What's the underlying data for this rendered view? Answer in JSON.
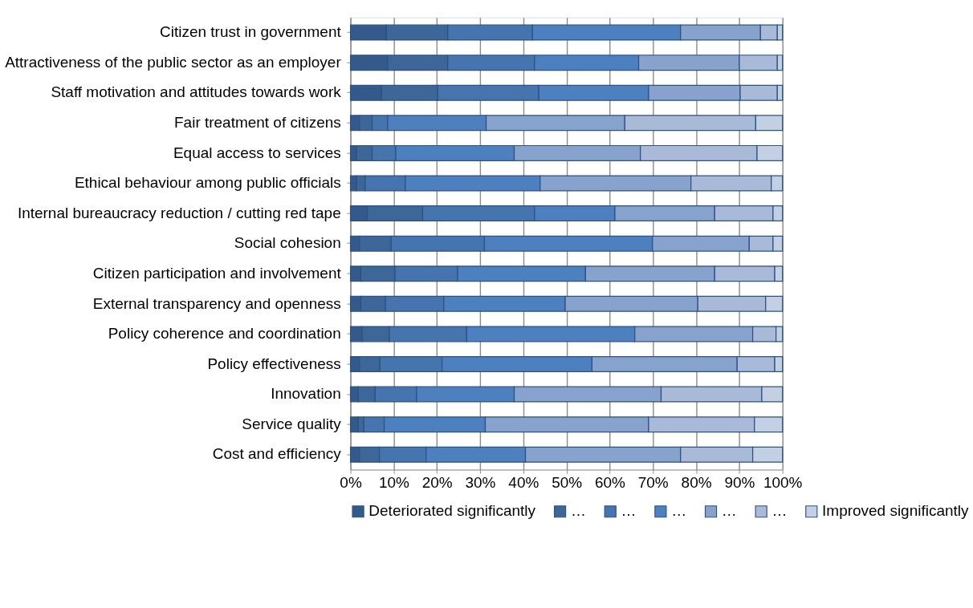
{
  "chart_data": {
    "type": "bar",
    "orientation": "horizontal",
    "stacked": true,
    "categories": [
      "Citizen trust in government",
      "Attractiveness of the public sector as an employer",
      "Staff motivation and attitudes towards work",
      "Fair treatment of citizens",
      "Equal access to services",
      "Ethical behaviour among public officials",
      "Internal bureaucracy reduction / cutting red tape",
      "Social cohesion",
      "Citizen participation and involvement",
      "External transparency and openness",
      "Policy coherence and coordination",
      "Policy effectiveness",
      "Innovation",
      "Service quality",
      "Cost and efficiency"
    ],
    "series": [
      {
        "name": "Deteriorated significantly",
        "color": "#335a8a",
        "values": [
          8.3,
          8.6,
          7.2,
          2.1,
          1.4,
          1.4,
          3.9,
          2.1,
          2.4,
          2.4,
          2.7,
          2.1,
          1.8,
          1.8,
          2.1
        ]
      },
      {
        "name": "…",
        "color": "#3d6799",
        "values": [
          14.2,
          13.9,
          13.0,
          2.9,
          3.6,
          2.0,
          12.8,
          7.3,
          7.9,
          5.7,
          6.3,
          4.7,
          3.9,
          1.3,
          4.6
        ]
      },
      {
        "name": "…",
        "color": "#4674ae",
        "values": [
          19.6,
          20.1,
          23.4,
          3.6,
          5.5,
          9.3,
          25.9,
          21.6,
          14.5,
          13.5,
          17.9,
          14.4,
          9.6,
          4.7,
          10.8
        ]
      },
      {
        "name": "…",
        "color": "#4d80bf",
        "values": [
          34.3,
          24.1,
          25.4,
          22.8,
          27.4,
          31.2,
          18.6,
          38.9,
          29.6,
          28.1,
          38.9,
          34.7,
          22.6,
          23.4,
          23.0
        ]
      },
      {
        "name": "…",
        "color": "#87a2cc",
        "values": [
          18.5,
          23.3,
          21.2,
          32.1,
          29.2,
          34.9,
          23.1,
          22.4,
          29.9,
          30.7,
          27.3,
          33.6,
          34.0,
          37.8,
          35.9
        ]
      },
      {
        "name": "…",
        "color": "#a9b9d8",
        "values": [
          3.9,
          8.8,
          8.6,
          30.3,
          27.0,
          18.6,
          13.5,
          5.5,
          13.9,
          15.7,
          5.4,
          8.7,
          23.3,
          24.5,
          16.7
        ]
      },
      {
        "name": "Improved significantly",
        "color": "#c3cfe3",
        "values": [
          1.2,
          1.2,
          1.2,
          6.2,
          5.9,
          2.6,
          2.2,
          2.2,
          1.8,
          3.9,
          1.5,
          1.8,
          4.8,
          6.5,
          6.9
        ]
      }
    ],
    "xlim": [
      0,
      100
    ],
    "xticks": [
      {
        "value": 0,
        "label": "0%"
      },
      {
        "value": 10,
        "label": "10%"
      },
      {
        "value": 20,
        "label": "20%"
      },
      {
        "value": 30,
        "label": "30%"
      },
      {
        "value": 40,
        "label": "40%"
      },
      {
        "value": 50,
        "label": "50%"
      },
      {
        "value": 60,
        "label": "60%"
      },
      {
        "value": 70,
        "label": "70%"
      },
      {
        "value": 80,
        "label": "80%"
      },
      {
        "value": 90,
        "label": "90%"
      },
      {
        "value": 100,
        "label": "100%"
      }
    ],
    "grid": "x",
    "legend": "bottom"
  }
}
